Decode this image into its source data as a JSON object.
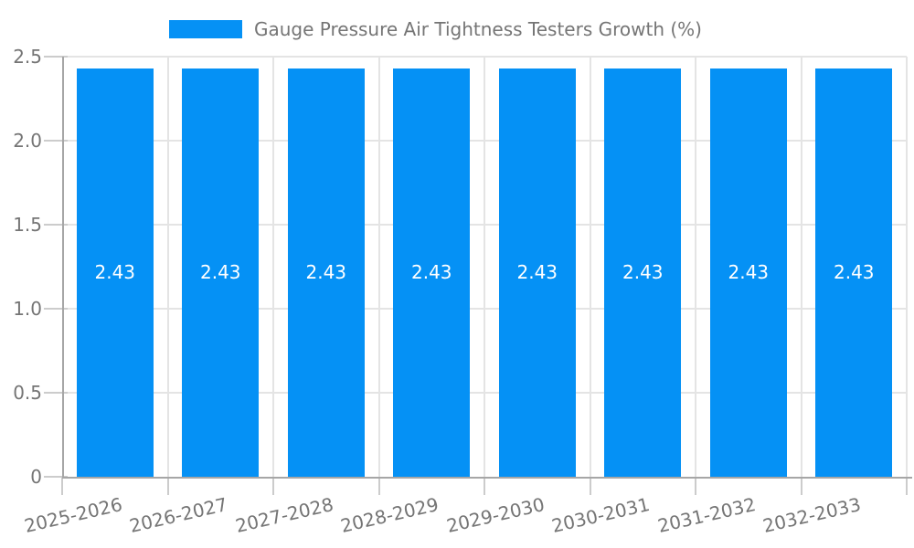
{
  "legend": {
    "label": "Gauge Pressure Air Tightness Testers Growth (%)"
  },
  "chart_data": {
    "type": "bar",
    "title": "Gauge Pressure Air Tightness Testers Growth (%)",
    "legend_position": "top",
    "grid": true,
    "categories": [
      "2025-2026",
      "2026-2027",
      "2027-2028",
      "2028-2029",
      "2029-2030",
      "2030-2031",
      "2031-2032",
      "2032-2033"
    ],
    "values": [
      2.43,
      2.43,
      2.43,
      2.43,
      2.43,
      2.43,
      2.43,
      2.43
    ],
    "value_labels": [
      "2.43",
      "2.43",
      "2.43",
      "2.43",
      "2.43",
      "2.43",
      "2.43",
      "2.43"
    ],
    "xlabel": "",
    "ylabel": "",
    "ylim": [
      0,
      2.5
    ],
    "y_ticks": [
      {
        "label": "2.5",
        "value": 2.5
      },
      {
        "label": "2.0",
        "value": 2.0
      },
      {
        "label": "1.5",
        "value": 1.5
      },
      {
        "label": "1.0",
        "value": 1.0
      },
      {
        "label": "0.5",
        "value": 0.5
      },
      {
        "label": "0",
        "value": 0.0
      }
    ],
    "colors": {
      "bar": "#0591f5",
      "grid": "#e4e4e4",
      "axis": "#a6a6a6",
      "tick": "#cccccc",
      "label_text": "#757575",
      "value_text": "#ffffff"
    }
  }
}
